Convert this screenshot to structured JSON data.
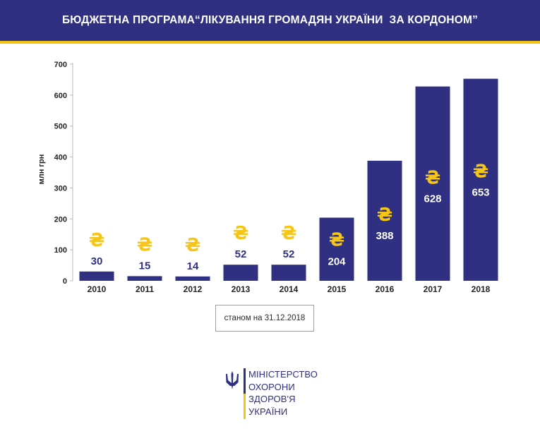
{
  "header": {
    "title": "БЮДЖЕТНА ПРОГРАМА“ЛІКУВАННЯ ГРОМАДЯН УКРАЇНИ  ЗА КОРДОНОМ”",
    "background_color": "#2f3082",
    "stripe_color": "#f5c518"
  },
  "note": "станом на 31.12.2018",
  "ministry_logo": {
    "lines": [
      "МІНІСТЕРСТВО",
      "ОХОРОНИ",
      "ЗДОРОВ'Я",
      "УКРАЇНИ"
    ],
    "emblem_icon": "trident-icon"
  },
  "chart_data": {
    "type": "bar",
    "title": "",
    "xlabel": "",
    "ylabel": "млн грн",
    "categories": [
      "2010",
      "2011",
      "2012",
      "2013",
      "2014",
      "2015",
      "2016",
      "2017",
      "2018"
    ],
    "values": [
      30,
      15,
      14,
      52,
      52,
      204,
      388,
      628,
      653
    ],
    "ylim": [
      0,
      700
    ],
    "yticks": [
      0,
      100,
      200,
      300,
      400,
      500,
      600,
      700
    ],
    "grid": false,
    "bar_color": "#2f3082",
    "currency_symbol": "₴",
    "currency_color": "#f5c518"
  }
}
